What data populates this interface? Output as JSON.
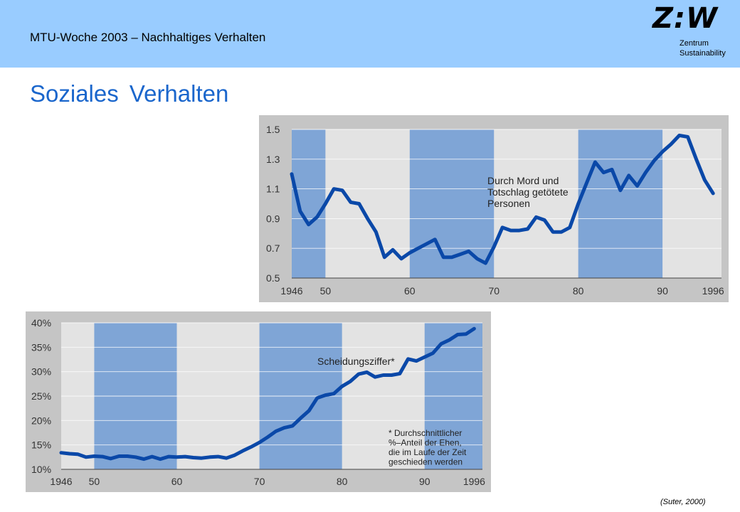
{
  "header": {
    "title": "MTU-Woche 2003 – Nachhaltiges Verhalten",
    "logo_text": "Z:W",
    "logo_sub_1": "Zentrum",
    "logo_sub_2": "Sustainability"
  },
  "slide_title": "Soziales Verhalten",
  "citation": "(Suter, 2000)",
  "colors": {
    "header_bg": "#99ccff",
    "title": "#1a66cc",
    "line": "#0a48a8",
    "band": "#7fa5d6",
    "frame": "#c5c5c5"
  },
  "chart_data": [
    {
      "type": "line",
      "annotation": [
        "Durch Mord und",
        "Totschlag getötete",
        "Personen"
      ],
      "x_tick_labels": [
        "1946",
        "50",
        "60",
        "70",
        "80",
        "90",
        "1996"
      ],
      "x_ticks": [
        1946,
        1950,
        1960,
        1970,
        1980,
        1990,
        1996
      ],
      "y_tick_labels": [
        "1.5",
        "1.3",
        "1.1",
        "0.9",
        "0.7",
        "0.5"
      ],
      "y_ticks": [
        1.5,
        1.3,
        1.1,
        0.9,
        0.7,
        0.5
      ],
      "xlim": [
        1946,
        1997
      ],
      "ylim": [
        0.5,
        1.5
      ],
      "shaded_periods": [
        [
          1946,
          1950
        ],
        [
          1960,
          1970
        ],
        [
          1980,
          1990
        ]
      ],
      "grid": "horizontal",
      "series": [
        {
          "x": [
            1946,
            1947,
            1948,
            1949,
            1950,
            1951,
            1952,
            1953,
            1954,
            1955,
            1956,
            1957,
            1958,
            1959,
            1960,
            1961,
            1962,
            1963,
            1964,
            1965,
            1966,
            1967,
            1968,
            1969,
            1970,
            1971,
            1972,
            1973,
            1974,
            1975,
            1976,
            1977,
            1978,
            1979,
            1980,
            1981,
            1982,
            1983,
            1984,
            1985,
            1986,
            1987,
            1988,
            1989,
            1990,
            1991,
            1992,
            1993,
            1994,
            1995,
            1996
          ],
          "values": [
            1.2,
            0.95,
            0.86,
            0.91,
            1.0,
            1.1,
            1.09,
            1.01,
            1.0,
            0.9,
            0.81,
            0.64,
            0.69,
            0.63,
            0.67,
            0.7,
            0.73,
            0.76,
            0.64,
            0.64,
            0.66,
            0.68,
            0.63,
            0.6,
            0.71,
            0.84,
            0.82,
            0.82,
            0.83,
            0.91,
            0.89,
            0.81,
            0.81,
            0.84,
            1.0,
            1.14,
            1.28,
            1.21,
            1.23,
            1.09,
            1.19,
            1.12,
            1.21,
            1.29,
            1.35,
            1.4,
            1.46,
            1.45,
            1.3,
            1.16,
            1.07
          ]
        }
      ]
    },
    {
      "type": "line",
      "annotation": [
        "Scheidungsziffer*"
      ],
      "footnote": [
        "* Durchschnittlicher",
        "%–Anteil der Ehen,",
        "die im Laufe der Zeit",
        "geschieden werden"
      ],
      "x_tick_labels": [
        "1946",
        "50",
        "60",
        "70",
        "80",
        "90",
        "1996"
      ],
      "x_ticks": [
        1946,
        1950,
        1960,
        1970,
        1980,
        1990,
        1996
      ],
      "y_tick_labels": [
        "40%",
        "35%",
        "30%",
        "25%",
        "20%",
        "15%",
        "10%"
      ],
      "y_ticks": [
        40,
        35,
        30,
        25,
        20,
        15,
        10
      ],
      "xlim": [
        1946,
        1997
      ],
      "ylim": [
        10,
        40
      ],
      "shaded_periods": [
        [
          1950,
          1960
        ],
        [
          1970,
          1980
        ],
        [
          1990,
          1997
        ]
      ],
      "grid": "horizontal",
      "series": [
        {
          "x": [
            1946,
            1947,
            1948,
            1949,
            1950,
            1951,
            1952,
            1953,
            1954,
            1955,
            1956,
            1957,
            1958,
            1959,
            1960,
            1961,
            1962,
            1963,
            1964,
            1965,
            1966,
            1967,
            1968,
            1969,
            1970,
            1971,
            1972,
            1973,
            1974,
            1975,
            1976,
            1977,
            1978,
            1979,
            1980,
            1981,
            1982,
            1983,
            1984,
            1985,
            1986,
            1987,
            1988,
            1989,
            1990,
            1991,
            1992,
            1993,
            1994,
            1995,
            1996
          ],
          "values": [
            13.4,
            13.2,
            13.1,
            12.5,
            12.7,
            12.6,
            12.2,
            12.7,
            12.7,
            12.5,
            12.1,
            12.6,
            12.1,
            12.6,
            12.5,
            12.6,
            12.4,
            12.3,
            12.5,
            12.6,
            12.3,
            12.9,
            13.8,
            14.6,
            15.5,
            16.6,
            17.8,
            18.5,
            18.9,
            20.5,
            22.0,
            24.6,
            25.2,
            25.5,
            27.0,
            28.0,
            29.5,
            29.9,
            28.9,
            29.3,
            29.3,
            29.6,
            32.6,
            32.2,
            33.0,
            33.8,
            35.7,
            36.5,
            37.6,
            37.7,
            38.8
          ]
        }
      ]
    }
  ]
}
